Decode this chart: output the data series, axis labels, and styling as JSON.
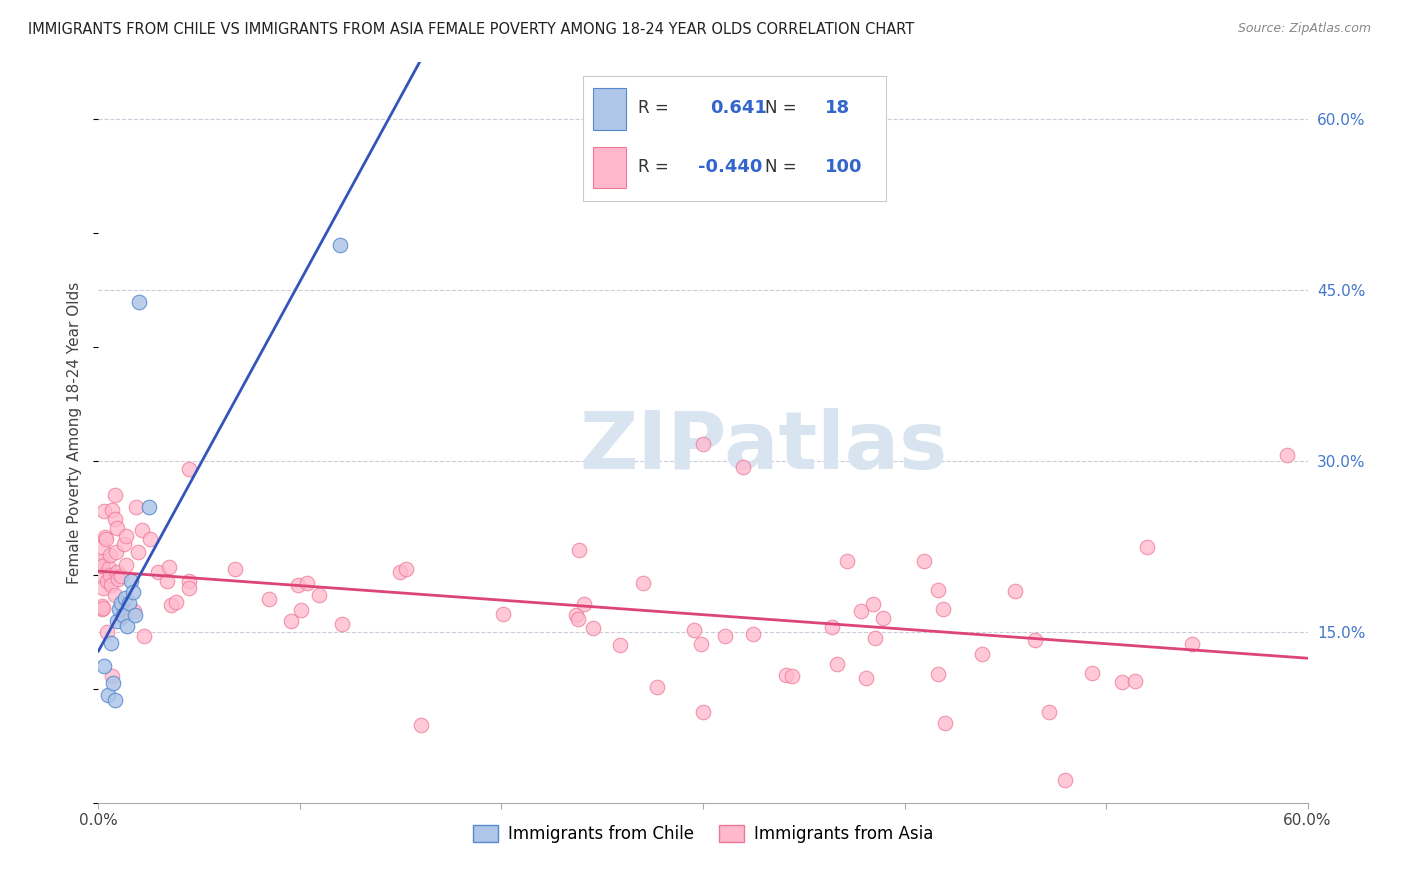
{
  "title": "IMMIGRANTS FROM CHILE VS IMMIGRANTS FROM ASIA FEMALE POVERTY AMONG 18-24 YEAR OLDS CORRELATION CHART",
  "source": "Source: ZipAtlas.com",
  "ylabel": "Female Poverty Among 18-24 Year Olds",
  "xlim": [
    0.0,
    0.6
  ],
  "ylim": [
    0.0,
    0.65
  ],
  "x_tick_positions": [
    0.0,
    0.1,
    0.2,
    0.3,
    0.4,
    0.5,
    0.6
  ],
  "x_tick_labels": [
    "0.0%",
    "",
    "",
    "",
    "",
    "",
    "60.0%"
  ],
  "y_ticks_right": [
    0.15,
    0.3,
    0.45,
    0.6
  ],
  "y_tick_labels_right": [
    "15.0%",
    "30.0%",
    "45.0%",
    "60.0%"
  ],
  "chile_face_color": "#aec6e8",
  "chile_edge_color": "#5588cc",
  "asia_face_color": "#ffb8cc",
  "asia_edge_color": "#ee7799",
  "chile_line_color": "#3355bb",
  "asia_line_color": "#dd4477",
  "chile_dash_color": "#99aabb",
  "legend_R_chile": "0.641",
  "legend_N_chile": "18",
  "legend_R_asia": "-0.440",
  "legend_N_asia": "100",
  "background_color": "#ffffff",
  "grid_color": "#ccccdd",
  "watermark": "ZIPatlas",
  "watermark_color": "#d8e4f0"
}
